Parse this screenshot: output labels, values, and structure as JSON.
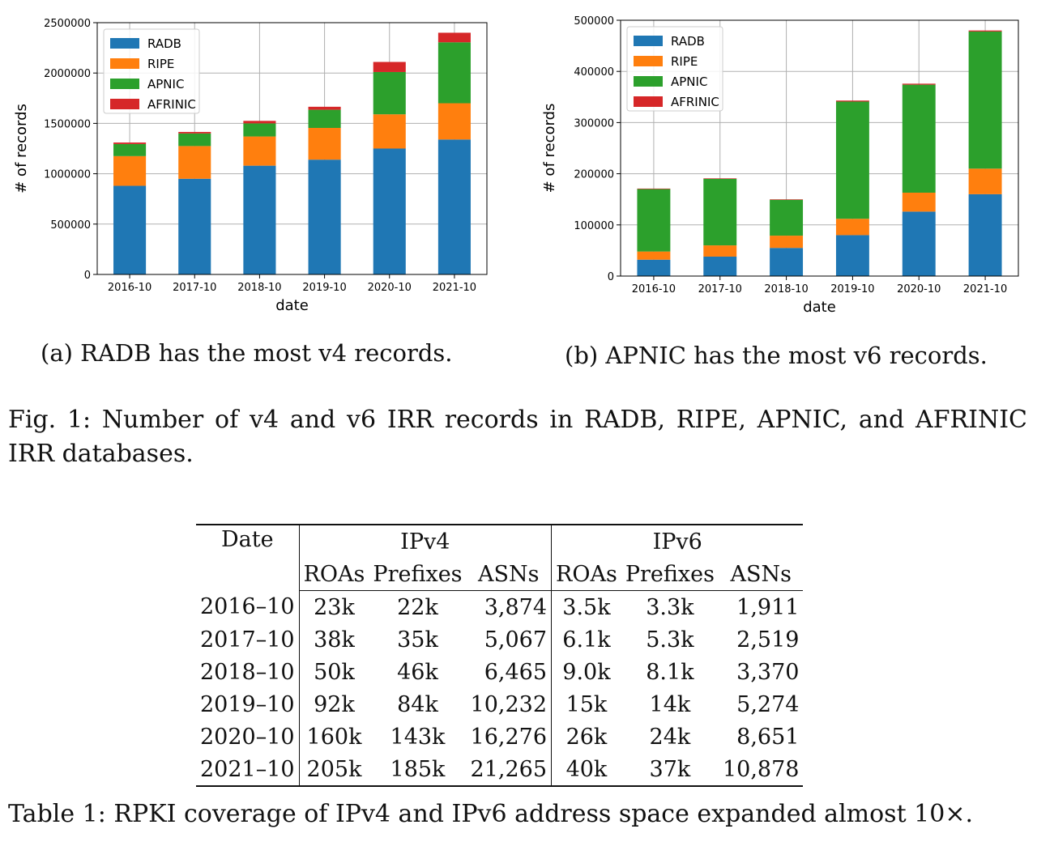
{
  "chart_data": [
    {
      "type": "bar",
      "stacked": true,
      "title": "",
      "xlabel": "date",
      "ylabel": "# of records",
      "ylim": [
        0,
        2500000
      ],
      "yticks": [
        "0",
        "500000",
        "1000000",
        "1500000",
        "2000000",
        "2500000"
      ],
      "ytick_values": [
        0,
        500000,
        1000000,
        1500000,
        2000000,
        2500000
      ],
      "categories": [
        "2016-10",
        "2017-10",
        "2018-10",
        "2019-10",
        "2020-10",
        "2021-10"
      ],
      "grid": true,
      "legend_position": "top-left",
      "series": [
        {
          "name": "RADB",
          "color": "#1f77b4",
          "values": [
            880000,
            950000,
            1080000,
            1140000,
            1250000,
            1340000
          ]
        },
        {
          "name": "RIPE",
          "color": "#ff7f0e",
          "values": [
            295000,
            325000,
            290000,
            315000,
            340000,
            360000
          ]
        },
        {
          "name": "APNIC",
          "color": "#2ca02c",
          "values": [
            120000,
            125000,
            130000,
            180000,
            420000,
            605000
          ]
        },
        {
          "name": "AFRINIC",
          "color": "#d62728",
          "values": [
            15000,
            15000,
            25000,
            30000,
            100000,
            95000
          ]
        }
      ]
    },
    {
      "type": "bar",
      "stacked": true,
      "title": "",
      "xlabel": "date",
      "ylabel": "# of records",
      "ylim": [
        0,
        500000
      ],
      "yticks": [
        "0",
        "100000",
        "200000",
        "300000",
        "400000",
        "500000"
      ],
      "ytick_values": [
        0,
        100000,
        200000,
        300000,
        400000,
        500000
      ],
      "categories": [
        "2016-10",
        "2017-10",
        "2018-10",
        "2019-10",
        "2020-10",
        "2021-10"
      ],
      "grid": true,
      "legend_position": "top-left",
      "series": [
        {
          "name": "RADB",
          "color": "#1f77b4",
          "values": [
            32000,
            38000,
            55000,
            80000,
            126000,
            160000
          ]
        },
        {
          "name": "RIPE",
          "color": "#ff7f0e",
          "values": [
            16000,
            22000,
            24000,
            32000,
            37000,
            50000
          ]
        },
        {
          "name": "APNIC",
          "color": "#2ca02c",
          "values": [
            122000,
            130000,
            70000,
            229000,
            211000,
            268000
          ]
        },
        {
          "name": "AFRINIC",
          "color": "#d62728",
          "values": [
            1000,
            1000,
            1000,
            2000,
            2000,
            2000
          ]
        }
      ]
    }
  ],
  "captions": {
    "sub_a": "(a) RADB has the most v4 records.",
    "sub_b": "(b) APNIC has the most v6 records.",
    "figure": "Fig. 1: Number of v4 and v6 IRR records in RADB, RIPE, APNIC, and AFRINIC IRR databases.",
    "table": "Table 1: RPKI coverage of IPv4 and IPv6 address space expanded almost 10×."
  },
  "table": {
    "date_header": "Date",
    "group_ipv4": "IPv4",
    "group_ipv6": "IPv6",
    "cols": [
      "ROAs",
      "Prefixes",
      "ASNs",
      "ROAs",
      "Prefixes",
      "ASNs"
    ],
    "rows": [
      {
        "date": "2016–10",
        "v4_roas": "23k",
        "v4_prefixes": "22k",
        "v4_asns": "3,874",
        "v6_roas": "3.5k",
        "v6_prefixes": "3.3k",
        "v6_asns": "1,911"
      },
      {
        "date": "2017–10",
        "v4_roas": "38k",
        "v4_prefixes": "35k",
        "v4_asns": "5,067",
        "v6_roas": "6.1k",
        "v6_prefixes": "5.3k",
        "v6_asns": "2,519"
      },
      {
        "date": "2018–10",
        "v4_roas": "50k",
        "v4_prefixes": "46k",
        "v4_asns": "6,465",
        "v6_roas": "9.0k",
        "v6_prefixes": "8.1k",
        "v6_asns": "3,370"
      },
      {
        "date": "2019–10",
        "v4_roas": "92k",
        "v4_prefixes": "84k",
        "v4_asns": "10,232",
        "v6_roas": "15k",
        "v6_prefixes": "14k",
        "v6_asns": "5,274"
      },
      {
        "date": "2020–10",
        "v4_roas": "160k",
        "v4_prefixes": "143k",
        "v4_asns": "16,276",
        "v6_roas": "26k",
        "v6_prefixes": "24k",
        "v6_asns": "8,651"
      },
      {
        "date": "2021–10",
        "v4_roas": "205k",
        "v4_prefixes": "185k",
        "v4_asns": "21,265",
        "v6_roas": "40k",
        "v6_prefixes": "37k",
        "v6_asns": "10,878"
      }
    ]
  }
}
